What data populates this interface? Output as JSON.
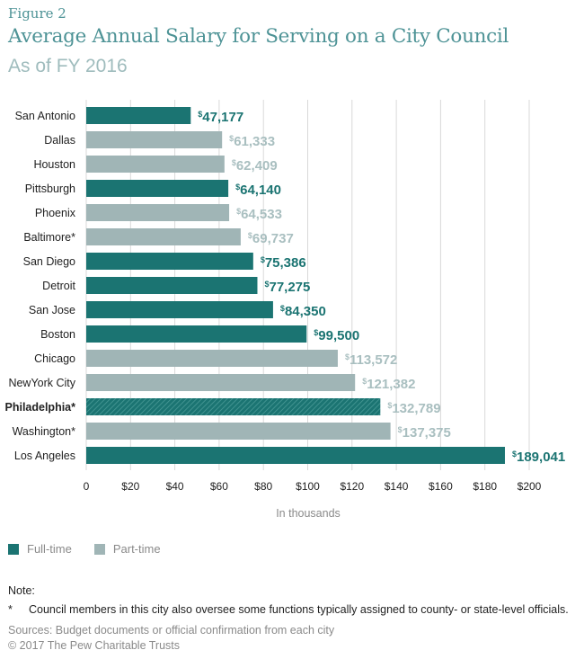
{
  "figure_label": "Figure 2",
  "title": "Average Annual Salary for Serving on a City Council",
  "subtitle": "As of FY 2016",
  "colors": {
    "full_time": "#1b7472",
    "part_time": "#a0b5b6",
    "grid": "#d9d9d9",
    "label_full": "#1b7472",
    "label_part": "#a9bfc0"
  },
  "chart_data": {
    "type": "bar",
    "orientation": "horizontal",
    "title": "Average Annual Salary for Serving on a City Council",
    "subtitle": "As of FY 2016",
    "xlabel": "In thousands",
    "ylabel": "",
    "xlim": [
      0,
      200
    ],
    "xticks": [
      0,
      20,
      40,
      60,
      80,
      100,
      120,
      140,
      160,
      180,
      200
    ],
    "xtick_labels": [
      "0",
      "$20",
      "$40",
      "$60",
      "$80",
      "$100",
      "$120",
      "$140",
      "$160",
      "$180",
      "$200"
    ],
    "grid": true,
    "legend": [
      "Full-time",
      "Part-time"
    ],
    "legend_position": "bottom-left",
    "categories": [
      "San Antonio",
      "Dallas",
      "Houston",
      "Pittsburgh",
      "Phoenix",
      "Baltimore*",
      "San Diego",
      "Detroit",
      "San Jose",
      "Boston",
      "Chicago",
      "NewYork City",
      "Philadelphia*",
      "Washington*",
      "Los Angeles"
    ],
    "values": [
      47177,
      61333,
      62409,
      64140,
      64533,
      69737,
      75386,
      77275,
      84350,
      99500,
      113572,
      121382,
      132789,
      137375,
      189041
    ],
    "value_labels": [
      "47,177",
      "61,333",
      "62,409",
      "64,140",
      "64,533",
      "69,737",
      "75,386",
      "77,275",
      "84,350",
      "99,500",
      "113,572",
      "121,382",
      "132,789",
      "137,375",
      "189,041"
    ],
    "status": [
      "full",
      "part",
      "part",
      "full",
      "part",
      "part",
      "full",
      "full",
      "full",
      "full",
      "part",
      "part",
      "hatched",
      "part",
      "full"
    ],
    "highlighted": [
      "Philadelphia*"
    ]
  },
  "legend": {
    "full_time": "Full-time",
    "part_time": "Part-time"
  },
  "note": {
    "heading": "Note:",
    "star": "*",
    "text": "Council members in this city also oversee some functions typically assigned to county- or state-level officials."
  },
  "sources": "Sources: Budget documents or official confirmation from each city",
  "copyright": "© 2017 The Pew Charitable Trusts"
}
